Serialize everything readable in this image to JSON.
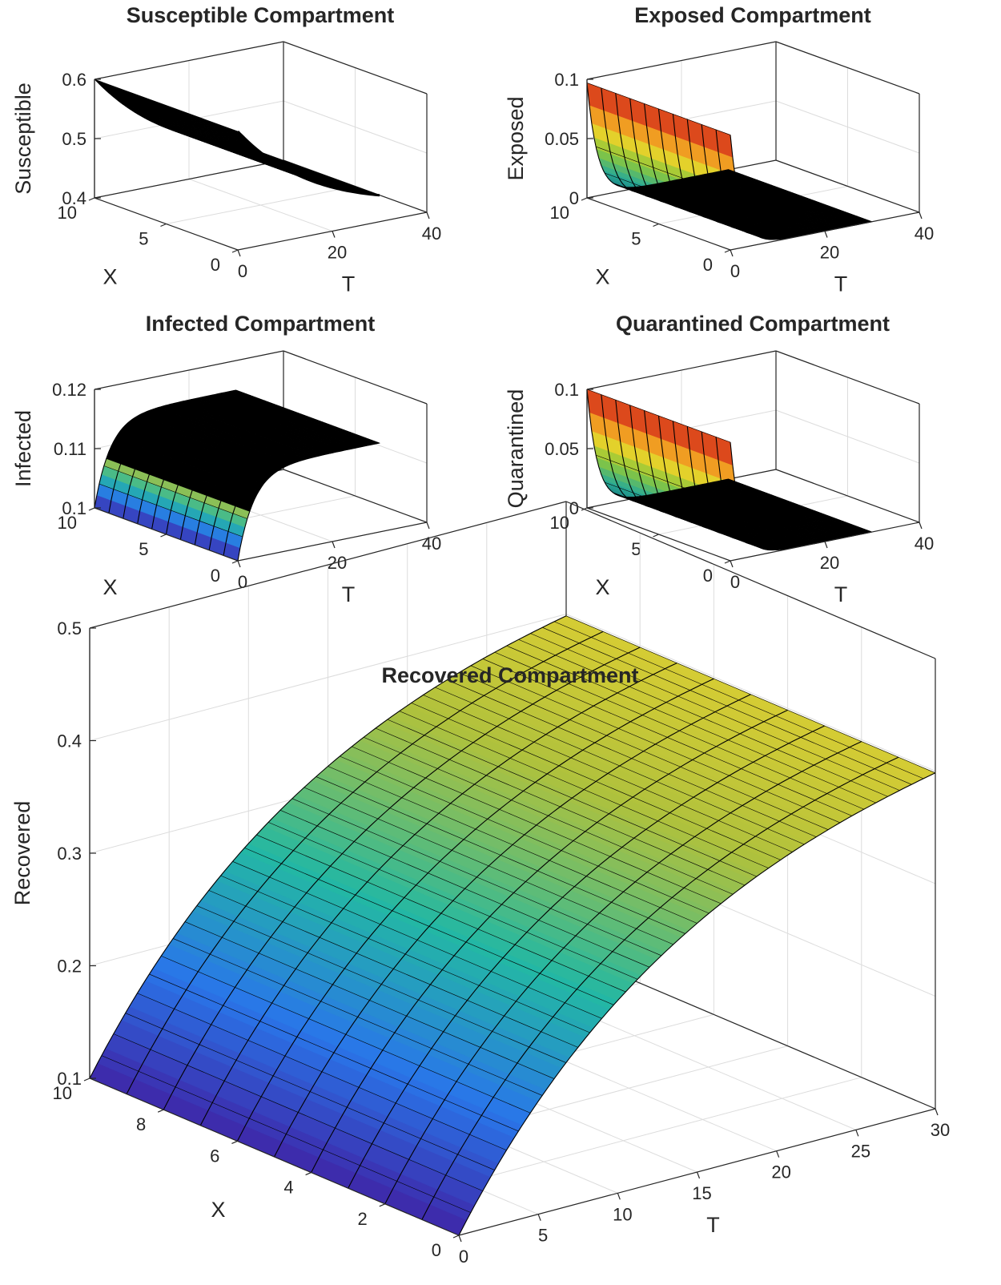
{
  "chart_data": [
    {
      "type": "surface",
      "title": "Susceptible Compartment",
      "xlabel": "X",
      "ylabel": "T",
      "zlabel": "Susceptible",
      "xlim": [
        0,
        10
      ],
      "ylim": [
        0,
        40
      ],
      "zlim": [
        0.4,
        0.6
      ],
      "xticks": [
        "0",
        "5",
        "10"
      ],
      "yticks": [
        "0",
        "20",
        "40"
      ],
      "zticks": [
        "0.4",
        "0.5",
        "0.6"
      ],
      "tmax": 30,
      "surface": {
        "profile": "decay",
        "z0": 0.6,
        "z1": 0.4,
        "rate": 0.05,
        "color": "black",
        "xlines": 0,
        "tlines": 0
      }
    },
    {
      "type": "surface",
      "title": "Exposed Compartment",
      "xlabel": "X",
      "ylabel": "T",
      "zlabel": "Exposed",
      "xlim": [
        0,
        10
      ],
      "ylim": [
        0,
        40
      ],
      "zlim": [
        0,
        0.1
      ],
      "xticks": [
        "0",
        "5",
        "10"
      ],
      "yticks": [
        "0",
        "20",
        "40"
      ],
      "zticks": [
        "0",
        "0.05",
        "0.1"
      ],
      "tmax": 30,
      "surface": {
        "profile": "decay",
        "z0": 0.097,
        "z1": 0.0,
        "rate": 0.45,
        "color": "jet",
        "xlines": 10,
        "tlines": 16
      }
    },
    {
      "type": "surface",
      "title": "Infected Compartment",
      "xlabel": "X",
      "ylabel": "T",
      "zlabel": "Infected",
      "xlim": [
        0,
        10
      ],
      "ylim": [
        0,
        40
      ],
      "zlim": [
        0.1,
        0.12
      ],
      "xticks": [
        "0",
        "5",
        "10"
      ],
      "yticks": [
        "0",
        "20",
        "40"
      ],
      "zticks": [
        "0.1",
        "0.11",
        "0.12"
      ],
      "tmax": 30,
      "surface": {
        "profile": "grow",
        "z0": 0.1,
        "z1": 0.115,
        "rate": 0.3,
        "color": "parula",
        "xlines": 10,
        "tlines": 30
      }
    },
    {
      "type": "surface",
      "title": "Quarantined Compartment",
      "xlabel": "X",
      "ylabel": "T",
      "zlabel": "Quarantined",
      "xlim": [
        0,
        10
      ],
      "ylim": [
        0,
        40
      ],
      "zlim": [
        0,
        0.1
      ],
      "xticks": [
        "0",
        "5",
        "10"
      ],
      "yticks": [
        "0",
        "20",
        "40"
      ],
      "zticks": [
        "0",
        "0.05",
        "0.1"
      ],
      "tmax": 30,
      "surface": {
        "profile": "decay",
        "z0": 0.1,
        "z1": 0.0,
        "rate": 0.45,
        "color": "jet",
        "xlines": 10,
        "tlines": 16
      }
    },
    {
      "type": "surface",
      "title": "Recovered Compartment",
      "xlabel": "X",
      "ylabel": "T",
      "zlabel": "Recovered",
      "xlim": [
        0,
        10
      ],
      "ylim": [
        0,
        30
      ],
      "zlim": [
        0.1,
        0.5
      ],
      "xticks": [
        "0",
        "2",
        "4",
        "6",
        "8",
        "10"
      ],
      "yticks": [
        "0",
        "5",
        "10",
        "15",
        "20",
        "25",
        "30"
      ],
      "zticks": [
        "0.1",
        "0.2",
        "0.3",
        "0.4",
        "0.5"
      ],
      "tmax": 30,
      "surface": {
        "profile": "grow",
        "z0": 0.1,
        "z1": 0.44,
        "rate": 0.07,
        "color": "parula",
        "xlines": 10,
        "tlines": 40
      }
    }
  ]
}
